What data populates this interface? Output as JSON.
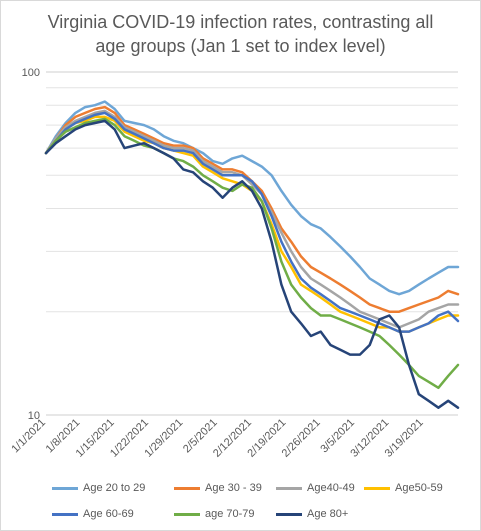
{
  "chart_data": {
    "type": "line",
    "title_line1": "Virginia COVID-19 infection rates, contrasting all",
    "title_line2": "age groups (Jan 1 set to index level)",
    "y_scale": "log",
    "ylim": [
      10,
      100
    ],
    "y_ticks": [
      {
        "value": 100,
        "label": "100"
      },
      {
        "value": 10,
        "label": "10"
      }
    ],
    "x_ticks": [
      "1/1/2021",
      "1/8/2021",
      "1/15/2021",
      "1/22/2021",
      "1/29/2021",
      "2/5/2021",
      "2/12/2021",
      "2/19/2021",
      "2/26/2021",
      "3/5/2021",
      "3/12/2021",
      "3/19/2021"
    ],
    "x_range_days": [
      0,
      84
    ],
    "grid": "horizontal-minor",
    "legend_position": "bottom",
    "series": [
      {
        "name": "Age 20 to 29",
        "color": "#6ea6d6",
        "points": [
          [
            0,
            58
          ],
          [
            2,
            65
          ],
          [
            4,
            71
          ],
          [
            6,
            76
          ],
          [
            8,
            79
          ],
          [
            10,
            80
          ],
          [
            12,
            82
          ],
          [
            14,
            78
          ],
          [
            16,
            72
          ],
          [
            18,
            71
          ],
          [
            20,
            70
          ],
          [
            22,
            68
          ],
          [
            24,
            65
          ],
          [
            26,
            63
          ],
          [
            28,
            62
          ],
          [
            30,
            60
          ],
          [
            32,
            58
          ],
          [
            34,
            55
          ],
          [
            36,
            54
          ],
          [
            38,
            56
          ],
          [
            40,
            57
          ],
          [
            42,
            55
          ],
          [
            44,
            53
          ],
          [
            46,
            50
          ],
          [
            48,
            45
          ],
          [
            50,
            41
          ],
          [
            52,
            38
          ],
          [
            54,
            36
          ],
          [
            56,
            35
          ],
          [
            58,
            33
          ],
          [
            60,
            31
          ],
          [
            62,
            29
          ],
          [
            64,
            27
          ],
          [
            66,
            25
          ],
          [
            68,
            24
          ],
          [
            70,
            23
          ],
          [
            72,
            22.5
          ],
          [
            74,
            23
          ],
          [
            76,
            24
          ],
          [
            78,
            25
          ],
          [
            80,
            26
          ],
          [
            82,
            27
          ],
          [
            84,
            27
          ]
        ]
      },
      {
        "name": "Age 30 - 39",
        "color": "#ed7d31",
        "points": [
          [
            0,
            58
          ],
          [
            2,
            64
          ],
          [
            4,
            70
          ],
          [
            6,
            74
          ],
          [
            8,
            76
          ],
          [
            10,
            78
          ],
          [
            12,
            79
          ],
          [
            14,
            76
          ],
          [
            16,
            70
          ],
          [
            18,
            68
          ],
          [
            20,
            66
          ],
          [
            22,
            64
          ],
          [
            24,
            62
          ],
          [
            26,
            61
          ],
          [
            28,
            61
          ],
          [
            30,
            60
          ],
          [
            32,
            56
          ],
          [
            34,
            54
          ],
          [
            36,
            52
          ],
          [
            38,
            52
          ],
          [
            40,
            51
          ],
          [
            42,
            48
          ],
          [
            44,
            45
          ],
          [
            46,
            40
          ],
          [
            48,
            35
          ],
          [
            50,
            32
          ],
          [
            52,
            29
          ],
          [
            54,
            27
          ],
          [
            56,
            26
          ],
          [
            58,
            25
          ],
          [
            60,
            24
          ],
          [
            62,
            23
          ],
          [
            64,
            22
          ],
          [
            66,
            21
          ],
          [
            68,
            20.5
          ],
          [
            70,
            20
          ],
          [
            72,
            20
          ],
          [
            74,
            20.5
          ],
          [
            76,
            21
          ],
          [
            78,
            21.5
          ],
          [
            80,
            22
          ],
          [
            82,
            23
          ],
          [
            84,
            22.5
          ]
        ]
      },
      {
        "name": "Age40-49",
        "color": "#a5a5a5",
        "points": [
          [
            0,
            58
          ],
          [
            2,
            64
          ],
          [
            4,
            69
          ],
          [
            6,
            72
          ],
          [
            8,
            74
          ],
          [
            10,
            76
          ],
          [
            12,
            77
          ],
          [
            14,
            74
          ],
          [
            16,
            69
          ],
          [
            18,
            67
          ],
          [
            20,
            65
          ],
          [
            22,
            63
          ],
          [
            24,
            61
          ],
          [
            26,
            60
          ],
          [
            28,
            60
          ],
          [
            30,
            59
          ],
          [
            32,
            55
          ],
          [
            34,
            53
          ],
          [
            36,
            51
          ],
          [
            38,
            51
          ],
          [
            40,
            50
          ],
          [
            42,
            47
          ],
          [
            44,
            44
          ],
          [
            46,
            39
          ],
          [
            48,
            34
          ],
          [
            50,
            30
          ],
          [
            52,
            27
          ],
          [
            54,
            25
          ],
          [
            56,
            24
          ],
          [
            58,
            23
          ],
          [
            60,
            22
          ],
          [
            62,
            21
          ],
          [
            64,
            20
          ],
          [
            66,
            19.5
          ],
          [
            68,
            19
          ],
          [
            70,
            18.5
          ],
          [
            72,
            18
          ],
          [
            74,
            18.5
          ],
          [
            76,
            19
          ],
          [
            78,
            20
          ],
          [
            80,
            20.5
          ],
          [
            82,
            21
          ],
          [
            84,
            21
          ]
        ]
      },
      {
        "name": "Age50-59",
        "color": "#ffc000",
        "points": [
          [
            0,
            58
          ],
          [
            2,
            63
          ],
          [
            4,
            68
          ],
          [
            6,
            71
          ],
          [
            8,
            72
          ],
          [
            10,
            74
          ],
          [
            12,
            74
          ],
          [
            14,
            72
          ],
          [
            16,
            67
          ],
          [
            18,
            65
          ],
          [
            20,
            63
          ],
          [
            22,
            62
          ],
          [
            24,
            60
          ],
          [
            26,
            59
          ],
          [
            28,
            58
          ],
          [
            30,
            57
          ],
          [
            32,
            53
          ],
          [
            34,
            51
          ],
          [
            36,
            49
          ],
          [
            38,
            48
          ],
          [
            40,
            47
          ],
          [
            42,
            45
          ],
          [
            44,
            42
          ],
          [
            46,
            36
          ],
          [
            48,
            30
          ],
          [
            50,
            27
          ],
          [
            52,
            24
          ],
          [
            54,
            23
          ],
          [
            56,
            22
          ],
          [
            58,
            21
          ],
          [
            60,
            20
          ],
          [
            62,
            19.5
          ],
          [
            64,
            19
          ],
          [
            66,
            18.5
          ],
          [
            68,
            18
          ],
          [
            70,
            18
          ],
          [
            72,
            17.5
          ],
          [
            74,
            17.5
          ],
          [
            76,
            18
          ],
          [
            78,
            18.5
          ],
          [
            80,
            19
          ],
          [
            82,
            19.5
          ],
          [
            84,
            19.5
          ]
        ]
      },
      {
        "name": "Age 60-69",
        "color": "#4472c4",
        "points": [
          [
            0,
            58
          ],
          [
            2,
            63
          ],
          [
            4,
            68
          ],
          [
            6,
            71
          ],
          [
            8,
            73
          ],
          [
            10,
            75
          ],
          [
            12,
            76
          ],
          [
            14,
            73
          ],
          [
            16,
            68
          ],
          [
            18,
            66
          ],
          [
            20,
            64
          ],
          [
            22,
            62
          ],
          [
            24,
            60
          ],
          [
            26,
            59
          ],
          [
            28,
            59
          ],
          [
            30,
            58
          ],
          [
            32,
            54
          ],
          [
            34,
            52
          ],
          [
            36,
            50
          ],
          [
            38,
            50
          ],
          [
            40,
            50
          ],
          [
            42,
            48
          ],
          [
            44,
            44
          ],
          [
            46,
            38
          ],
          [
            48,
            32
          ],
          [
            50,
            28
          ],
          [
            52,
            25
          ],
          [
            54,
            23.5
          ],
          [
            56,
            22.5
          ],
          [
            58,
            21.5
          ],
          [
            60,
            20.5
          ],
          [
            62,
            20
          ],
          [
            64,
            19.5
          ],
          [
            66,
            19
          ],
          [
            68,
            18.5
          ],
          [
            70,
            18
          ],
          [
            72,
            17.5
          ],
          [
            74,
            17.5
          ],
          [
            76,
            18
          ],
          [
            78,
            18.5
          ],
          [
            80,
            19.5
          ],
          [
            82,
            20
          ],
          [
            84,
            18.8
          ]
        ]
      },
      {
        "name": "age 70-79",
        "color": "#70ad47",
        "points": [
          [
            0,
            58
          ],
          [
            2,
            63
          ],
          [
            4,
            67
          ],
          [
            6,
            69
          ],
          [
            8,
            71
          ],
          [
            10,
            72
          ],
          [
            12,
            73
          ],
          [
            14,
            70
          ],
          [
            16,
            65
          ],
          [
            18,
            63
          ],
          [
            20,
            61
          ],
          [
            22,
            60
          ],
          [
            24,
            58
          ],
          [
            26,
            56
          ],
          [
            28,
            55
          ],
          [
            30,
            53
          ],
          [
            32,
            50
          ],
          [
            34,
            48
          ],
          [
            36,
            46
          ],
          [
            38,
            45
          ],
          [
            40,
            47
          ],
          [
            42,
            46
          ],
          [
            44,
            42
          ],
          [
            46,
            35
          ],
          [
            48,
            28
          ],
          [
            50,
            24
          ],
          [
            52,
            22
          ],
          [
            54,
            20.5
          ],
          [
            56,
            19.5
          ],
          [
            58,
            19.5
          ],
          [
            60,
            19
          ],
          [
            62,
            18.5
          ],
          [
            64,
            18
          ],
          [
            66,
            17.5
          ],
          [
            68,
            17
          ],
          [
            70,
            16
          ],
          [
            72,
            15
          ],
          [
            74,
            14
          ],
          [
            76,
            13
          ],
          [
            78,
            12.5
          ],
          [
            80,
            12
          ],
          [
            82,
            13
          ],
          [
            84,
            14
          ]
        ]
      },
      {
        "name": "Age 80+",
        "color": "#264478",
        "points": [
          [
            0,
            58
          ],
          [
            2,
            62
          ],
          [
            4,
            65
          ],
          [
            6,
            68
          ],
          [
            8,
            70
          ],
          [
            10,
            71
          ],
          [
            12,
            72
          ],
          [
            14,
            68
          ],
          [
            16,
            60
          ],
          [
            18,
            61
          ],
          [
            20,
            62
          ],
          [
            22,
            60
          ],
          [
            24,
            58
          ],
          [
            26,
            56
          ],
          [
            28,
            52
          ],
          [
            30,
            51
          ],
          [
            32,
            48
          ],
          [
            34,
            46
          ],
          [
            36,
            43
          ],
          [
            38,
            46
          ],
          [
            40,
            48
          ],
          [
            42,
            45
          ],
          [
            44,
            40
          ],
          [
            46,
            32
          ],
          [
            48,
            24
          ],
          [
            50,
            20
          ],
          [
            52,
            18.5
          ],
          [
            54,
            17
          ],
          [
            56,
            17.5
          ],
          [
            58,
            16
          ],
          [
            60,
            15.5
          ],
          [
            62,
            15
          ],
          [
            64,
            15
          ],
          [
            66,
            16
          ],
          [
            68,
            19
          ],
          [
            70,
            19.5
          ],
          [
            72,
            18
          ],
          [
            74,
            14
          ],
          [
            76,
            11.5
          ],
          [
            78,
            11
          ],
          [
            80,
            10.5
          ],
          [
            82,
            11
          ],
          [
            84,
            10.5
          ]
        ]
      }
    ]
  }
}
